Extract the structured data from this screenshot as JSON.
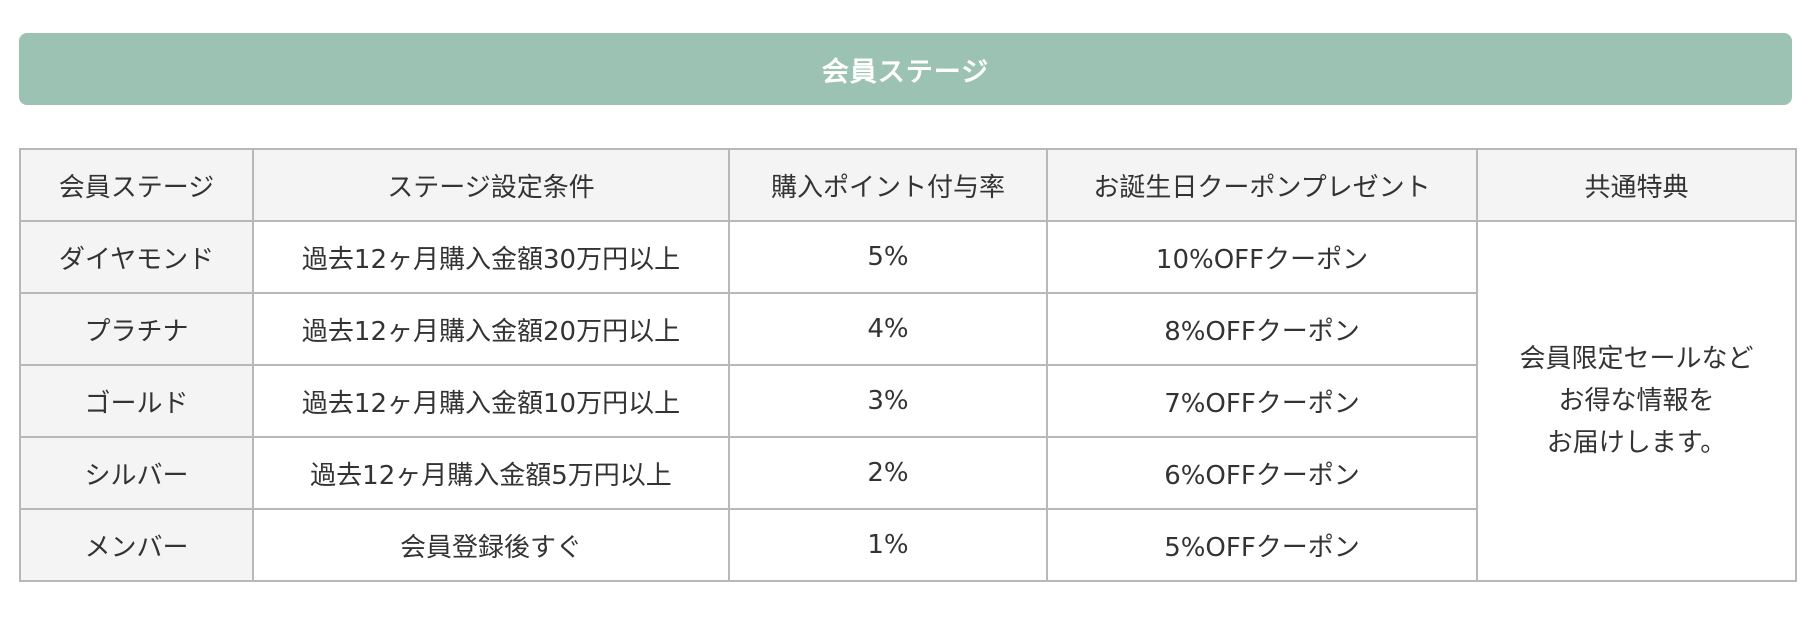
{
  "header": {
    "title": "会員ステージ"
  },
  "table": {
    "columns": [
      "会員ステージ",
      "ステージ設定条件",
      "購入ポイント付与率",
      "お誕生日クーポンプレゼント",
      "共通特典"
    ],
    "rows": [
      {
        "stage": "ダイヤモンド",
        "condition": "過去12ヶ月購入金額30万円以上",
        "point_rate": "5%",
        "coupon": "10%OFFクーポン"
      },
      {
        "stage": "プラチナ",
        "condition": "過去12ヶ月購入金額20万円以上",
        "point_rate": "4%",
        "coupon": "8%OFFクーポン"
      },
      {
        "stage": "ゴールド",
        "condition": "過去12ヶ月購入金額10万円以上",
        "point_rate": "3%",
        "coupon": "7%OFFクーポン"
      },
      {
        "stage": "シルバー",
        "condition": "過去12ヶ月購入金額5万円以上",
        "point_rate": "2%",
        "coupon": "6%OFFクーポン"
      },
      {
        "stage": "メンバー",
        "condition": "会員登録後すぐ",
        "point_rate": "1%",
        "coupon": "5%OFFクーポン"
      }
    ],
    "common_benefit": [
      "会員限定セールなど",
      "お得な情報を",
      "お届けします。"
    ]
  },
  "colors": {
    "header_bg": "#9bc2b3",
    "header_text": "#ffffff",
    "cell_border": "#b8b8b8",
    "header_cell_bg": "#f4f4f4"
  }
}
